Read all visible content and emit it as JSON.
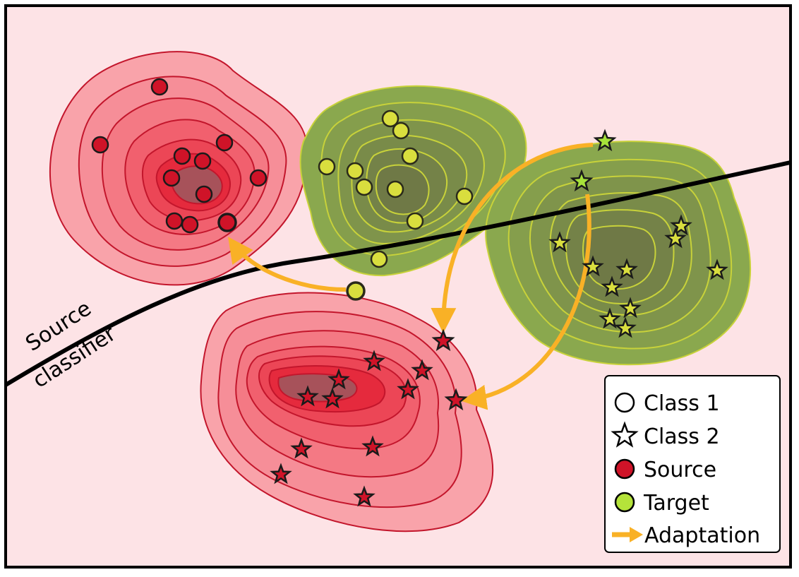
{
  "classifier": {
    "label_line1": "Source",
    "label_line2": "classifier"
  },
  "legend": {
    "class1": "Class 1",
    "class2": "Class 2",
    "source": "Source",
    "target": "Target",
    "adaptation": "Adaptation"
  },
  "colors": {
    "background": "#fde3e6",
    "source_fill": "#d70a1e",
    "source_edge": "#b5122a",
    "target_fill": "#d6dc3a",
    "target_edge": "#c8d23a",
    "target_cluster": "#8aa84e",
    "arrow": "#f9b126",
    "classifier": "#000000"
  },
  "icons": {
    "class1": "circle-marker-icon",
    "class2": "star-marker-icon",
    "adaptation": "arrow-icon"
  }
}
